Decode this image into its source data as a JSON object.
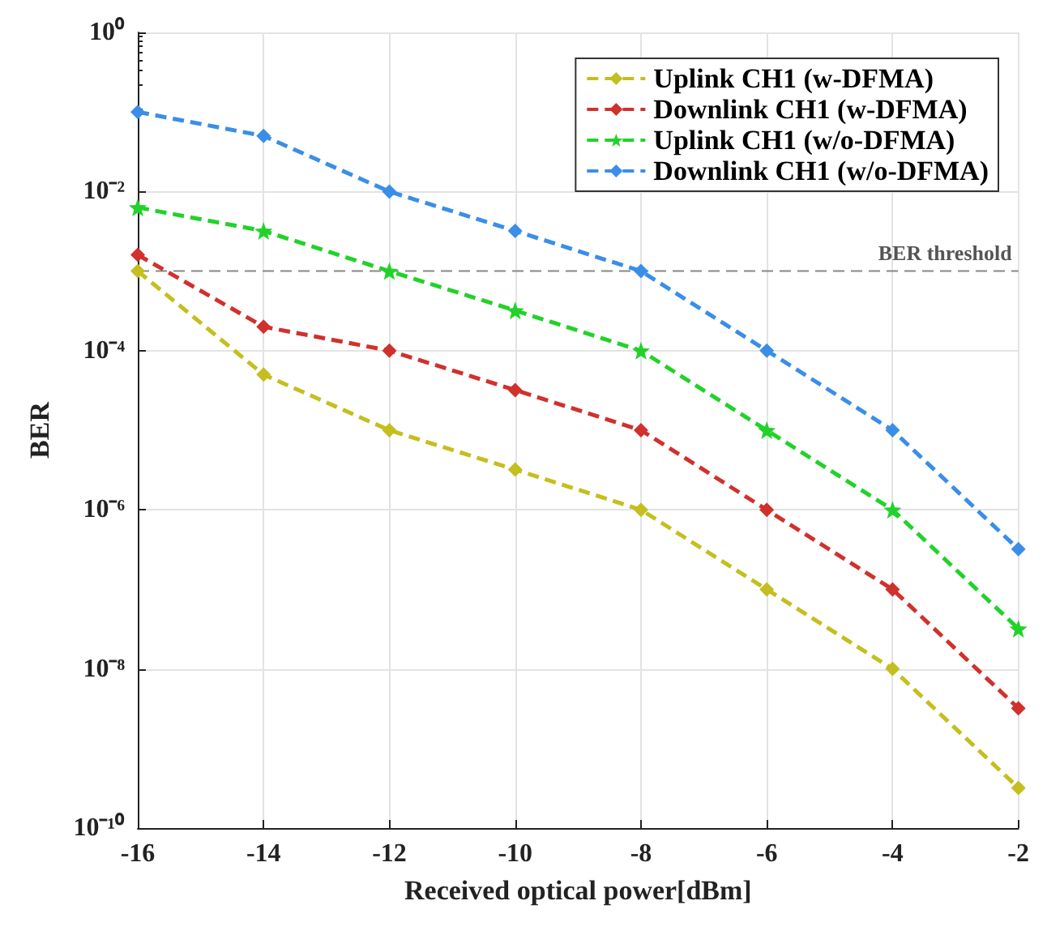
{
  "chart_data": {
    "type": "line",
    "xlabel": "Received optical power[dBm]",
    "ylabel": "BER",
    "x": [
      -16,
      -14,
      -12,
      -10,
      -8,
      -6,
      -4,
      -2
    ],
    "series": [
      {
        "name": "Uplink CH1 (w-DFMA)",
        "color": "#c4bf1e",
        "values": [
          0.001,
          5e-05,
          1e-05,
          3.2e-06,
          1e-06,
          1e-07,
          1e-08,
          3.2e-10
        ]
      },
      {
        "name": "Downlink CH1 (w-DFMA)",
        "color": "#d0312d",
        "values": [
          0.0016,
          0.0002,
          0.0001,
          3.2e-05,
          1e-05,
          1e-06,
          1e-07,
          3.2e-09
        ]
      },
      {
        "name": "Uplink CH1 (w/o-DFMA)",
        "color": "#22d22a",
        "marker": "star",
        "values": [
          0.0063,
          0.0032,
          0.001,
          0.00032,
          0.0001,
          1e-05,
          1e-06,
          3.2e-08
        ]
      },
      {
        "name": "Downlink CH1 (w/o-DFMA)",
        "color": "#3b8ee8",
        "values": [
          0.1,
          0.05,
          0.01,
          0.0032,
          0.001,
          0.0001,
          1e-05,
          3.2e-07
        ]
      }
    ],
    "xlim": [
      -16,
      -2
    ],
    "xticks": [
      -16,
      -14,
      -12,
      -10,
      -8,
      -6,
      -4,
      -2
    ],
    "ylim": [
      1e-10,
      1
    ],
    "yticks": [
      {
        "value": 1,
        "label": "10⁰"
      },
      {
        "value": 0.01,
        "label": "10⁻²"
      },
      {
        "value": 0.0001,
        "label": "10⁻⁴"
      },
      {
        "value": 1e-06,
        "label": "10⁻⁶"
      },
      {
        "value": 1e-08,
        "label": "10⁻⁸"
      },
      {
        "value": 1e-10,
        "label": "10⁻¹⁰"
      }
    ],
    "log": "y",
    "grid": true,
    "legend": "top right",
    "marker": "diamond",
    "line_style": "dashed",
    "ref_lines": [
      {
        "axis": "y",
        "value": 0.001,
        "label": "BER threshold",
        "color": "#888888",
        "line_style": "dashed"
      }
    ]
  }
}
